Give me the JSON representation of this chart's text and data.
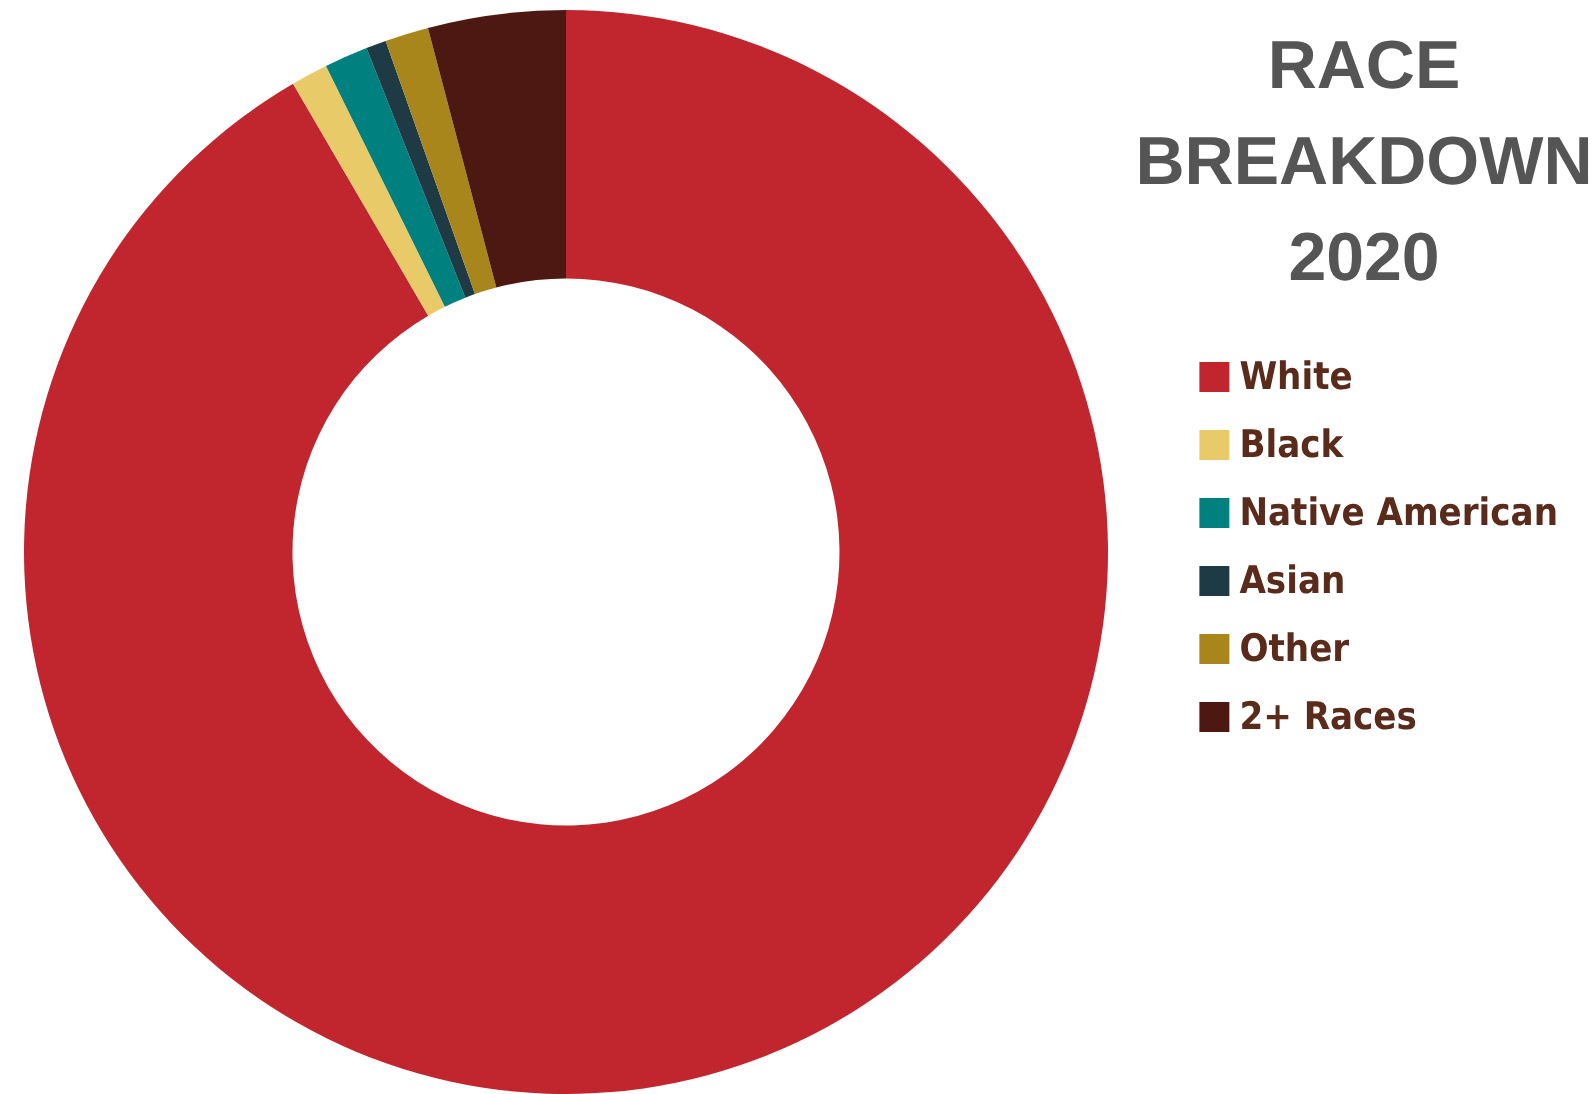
{
  "chart_data": {
    "type": "donut",
    "title": "RACE\nBREAKDOWN\n2020",
    "categories": [
      "White",
      "Black",
      "Native American",
      "Asian",
      "Other",
      "2+ Races"
    ],
    "values": [
      91.6,
      1.1,
      1.3,
      0.6,
      1.3,
      4.1
    ],
    "colors": [
      "#c1262f",
      "#e8cb68",
      "#00807e",
      "#1e3a45",
      "#a8861c",
      "#4e1812"
    ],
    "legend": "right"
  }
}
